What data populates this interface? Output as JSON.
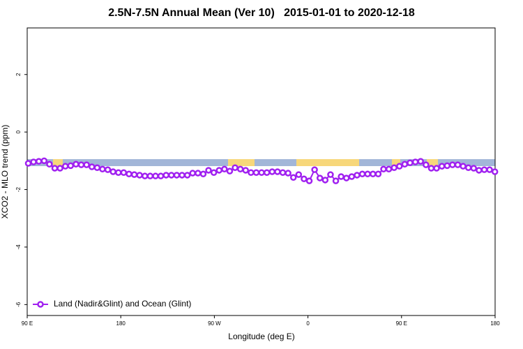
{
  "chart_data": {
    "type": "line",
    "title": "2.5N-7.5N Annual Mean (Ver 10)   2015-01-01 to 2020-12-18",
    "x_label": "Longitude (deg E)",
    "y_label": "XCO2 - MLO trend (ppm)",
    "xlim": [
      90,
      540
    ],
    "ylim": [
      -6.38,
      3.62
    ],
    "xticks": [
      {
        "value": 90,
        "label": "90 E"
      },
      180,
      {
        "value": 270,
        "label": "90 W"
      },
      {
        "value": 360,
        "label": "0"
      },
      {
        "value": 450,
        "label": "90 E"
      },
      {
        "value": 540,
        "label": "180"
      }
    ],
    "yticks": [
      -6,
      -4,
      -2,
      0,
      2
    ],
    "legend_position": "bottom-left",
    "x": [
      91.0,
      96.1,
      101.2,
      106.3,
      111.4,
      116.5,
      121.6,
      126.7,
      131.8,
      136.9,
      142.0,
      147.1,
      152.2,
      157.3,
      162.4,
      167.5,
      172.6,
      177.7,
      182.8,
      187.9,
      193.0,
      198.1,
      203.2,
      208.3,
      213.4,
      218.5,
      223.6,
      228.7,
      233.8,
      238.9,
      244.0,
      249.1,
      254.2,
      259.3,
      264.4,
      269.5,
      274.6,
      279.7,
      284.8,
      289.9,
      295.0,
      300.1,
      305.2,
      310.3,
      315.4,
      320.5,
      325.6,
      330.7,
      335.8,
      340.9,
      346.0,
      351.1,
      356.2,
      361.3,
      366.4,
      371.5,
      376.6,
      381.7,
      386.8,
      391.9,
      397.0,
      402.1,
      407.2,
      412.3,
      417.4,
      422.5,
      427.6,
      432.7,
      437.8,
      442.9,
      448.0,
      453.1,
      458.2,
      463.3,
      468.4,
      473.5,
      478.6,
      483.7,
      488.8,
      493.9,
      499.0,
      504.1,
      509.2,
      514.3,
      519.4,
      524.5,
      529.6,
      534.7,
      539.8
    ],
    "series": [
      {
        "name": "Land (Nadir&Glint) and Ocean (Glint)",
        "color": "#a020f0",
        "values": [
          -1.09,
          -1.04,
          -1.02,
          -1.0,
          -1.12,
          -1.26,
          -1.26,
          -1.19,
          -1.17,
          -1.12,
          -1.14,
          -1.14,
          -1.21,
          -1.24,
          -1.29,
          -1.31,
          -1.38,
          -1.41,
          -1.41,
          -1.46,
          -1.48,
          -1.5,
          -1.53,
          -1.53,
          -1.53,
          -1.53,
          -1.5,
          -1.5,
          -1.5,
          -1.5,
          -1.5,
          -1.43,
          -1.43,
          -1.46,
          -1.33,
          -1.41,
          -1.33,
          -1.29,
          -1.36,
          -1.24,
          -1.29,
          -1.33,
          -1.41,
          -1.41,
          -1.41,
          -1.41,
          -1.38,
          -1.38,
          -1.41,
          -1.43,
          -1.58,
          -1.48,
          -1.63,
          -1.7,
          -1.31,
          -1.6,
          -1.67,
          -1.48,
          -1.7,
          -1.55,
          -1.6,
          -1.55,
          -1.5,
          -1.46,
          -1.46,
          -1.46,
          -1.46,
          -1.29,
          -1.29,
          -1.24,
          -1.19,
          -1.12,
          -1.07,
          -1.04,
          -1.02,
          -1.14,
          -1.26,
          -1.26,
          -1.19,
          -1.17,
          -1.14,
          -1.14,
          -1.19,
          -1.24,
          -1.26,
          -1.33,
          -1.31,
          -1.31,
          -1.38
        ]
      }
    ]
  }
}
